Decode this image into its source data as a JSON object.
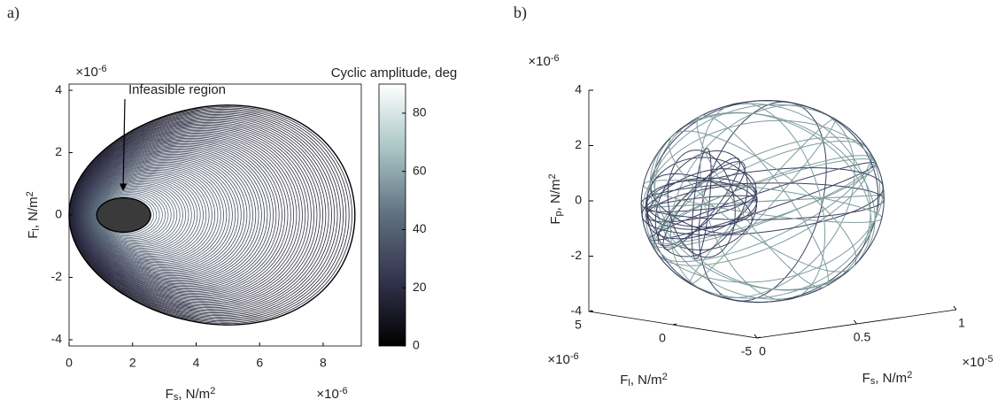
{
  "chart_data": [
    {
      "type": "contour",
      "label": "a)",
      "annotation": "Infeasible region",
      "x_label": {
        "base": "F",
        "sub": "s",
        "unit": ", N/m",
        "sup": "2"
      },
      "y_label": {
        "base": "F",
        "sub": "l",
        "unit": ", N/m",
        "sup": "2"
      },
      "x_multiplier": {
        "base": "×10",
        "sup": "-6"
      },
      "y_multiplier": {
        "base": "×10",
        "sup": "-6"
      },
      "xlim": [
        0,
        9.2
      ],
      "xticks": [
        0,
        2,
        4,
        6,
        8
      ],
      "ylim": [
        -4.2,
        4.2
      ],
      "yticks": [
        -4,
        -2,
        0,
        2,
        4
      ],
      "colorbar": {
        "title": "Cyclic amplitude, deg",
        "lim": [
          0,
          90
        ],
        "ticks": [
          0,
          20,
          40,
          60,
          80
        ]
      }
    },
    {
      "type": "trajectory3d",
      "label": "b)",
      "x_label": {
        "base": "F",
        "sub": "l",
        "unit": ", N/m",
        "sup": "2"
      },
      "y_label": {
        "base": "F",
        "sub": "s",
        "unit": ", N/m",
        "sup": "2"
      },
      "z_label": {
        "base": "F",
        "sub": "p",
        "unit": ", N/m",
        "sup": "2"
      },
      "x_multiplier": {
        "base": "×10",
        "sup": "-6"
      },
      "y_multiplier": {
        "base": "×10",
        "sup": "-5"
      },
      "z_multiplier": {
        "base": "×10",
        "sup": "-6"
      },
      "xlim": [
        -5,
        5
      ],
      "xticks": [
        -5,
        0,
        5
      ],
      "ylim": [
        0,
        1
      ],
      "yticks": [
        0,
        0.5,
        1
      ],
      "zlim": [
        -4,
        4
      ],
      "zticks": [
        -4,
        -2,
        0,
        2,
        4
      ]
    }
  ]
}
